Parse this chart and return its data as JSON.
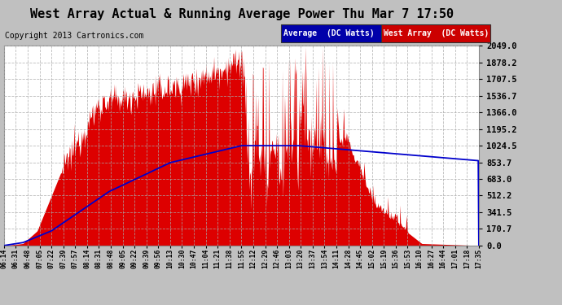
{
  "title": "West Array Actual & Running Average Power Thu Mar 7 17:50",
  "copyright": "Copyright 2013 Cartronics.com",
  "legend_labels": [
    "Average  (DC Watts)",
    "West Array  (DC Watts)"
  ],
  "y_ticks": [
    0.0,
    170.7,
    341.5,
    512.2,
    683.0,
    853.7,
    1024.5,
    1195.2,
    1366.0,
    1536.7,
    1707.5,
    1878.2,
    2049.0
  ],
  "x_tick_labels": [
    "06:14",
    "06:31",
    "06:48",
    "07:05",
    "07:22",
    "07:39",
    "07:57",
    "08:14",
    "08:31",
    "08:48",
    "09:05",
    "09:22",
    "09:39",
    "09:56",
    "10:13",
    "10:30",
    "10:47",
    "11:04",
    "11:21",
    "11:38",
    "11:55",
    "12:12",
    "12:29",
    "12:46",
    "13:03",
    "13:20",
    "13:37",
    "13:54",
    "14:11",
    "14:28",
    "14:45",
    "15:02",
    "15:19",
    "15:36",
    "15:53",
    "16:10",
    "16:27",
    "16:44",
    "17:01",
    "17:18",
    "17:35"
  ],
  "fill_color": "#dd0000",
  "line_color": "#0000cc",
  "grid_color": "#aaaaaa",
  "outer_bg": "#c0c0c0",
  "plot_bg": "#ffffff",
  "title_font": 11,
  "copyright_font": 7,
  "legend_font": 7,
  "ymax": 2049.0,
  "ymin": 0.0
}
